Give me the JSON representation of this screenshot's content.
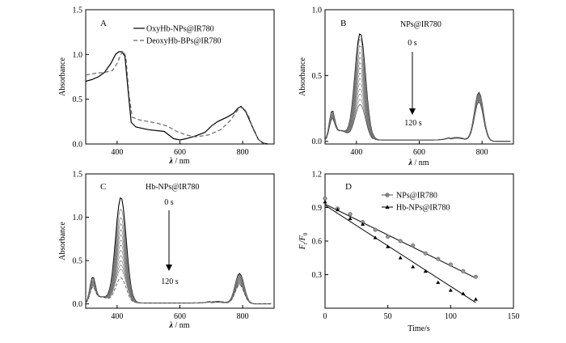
{
  "chart_data": [
    {
      "panel": "A",
      "type": "line",
      "xlabel_var": "λ",
      "xlabel_unit": " / nm",
      "ylabel": "Absorbance",
      "xlim": [
        300,
        900
      ],
      "ylim": [
        0,
        1.5
      ],
      "xticks": [
        400,
        600,
        800
      ],
      "yticks": [
        0.0,
        0.5,
        1.0,
        1.5
      ],
      "ytick_labels": [
        "0.0",
        "0.5",
        "1.0",
        "1.5"
      ],
      "legend_position": "top-right",
      "series": [
        {
          "name": "OxyHb-NPs@IR780",
          "style": "solid",
          "points": [
            [
              300,
              0.7
            ],
            [
              320,
              0.72
            ],
            [
              340,
              0.75
            ],
            [
              360,
              0.8
            ],
            [
              380,
              0.9
            ],
            [
              395,
              1.0
            ],
            [
              405,
              1.03
            ],
            [
              415,
              1.03
            ],
            [
              425,
              0.98
            ],
            [
              435,
              0.6
            ],
            [
              445,
              0.24
            ],
            [
              460,
              0.19
            ],
            [
              500,
              0.16
            ],
            [
              550,
              0.14
            ],
            [
              580,
              0.06
            ],
            [
              600,
              0.045
            ],
            [
              620,
              0.06
            ],
            [
              650,
              0.09
            ],
            [
              680,
              0.13
            ],
            [
              700,
              0.2
            ],
            [
              720,
              0.25
            ],
            [
              750,
              0.3
            ],
            [
              770,
              0.34
            ],
            [
              785,
              0.4
            ],
            [
              795,
              0.42
            ],
            [
              810,
              0.36
            ],
            [
              830,
              0.2
            ],
            [
              850,
              0.05
            ],
            [
              865,
              0.01
            ],
            [
              880,
              0.0
            ]
          ]
        },
        {
          "name": "DeoxyHb-BPs@IR780",
          "style": "dashed",
          "points": [
            [
              300,
              0.77
            ],
            [
              330,
              0.79
            ],
            [
              360,
              0.8
            ],
            [
              385,
              0.82
            ],
            [
              400,
              0.9
            ],
            [
              412,
              1.0
            ],
            [
              420,
              1.04
            ],
            [
              428,
              0.97
            ],
            [
              438,
              0.55
            ],
            [
              448,
              0.3
            ],
            [
              470,
              0.27
            ],
            [
              500,
              0.25
            ],
            [
              530,
              0.23
            ],
            [
              560,
              0.2
            ],
            [
              590,
              0.14
            ],
            [
              620,
              0.1
            ],
            [
              650,
              0.08
            ],
            [
              690,
              0.1
            ],
            [
              730,
              0.16
            ],
            [
              760,
              0.26
            ],
            [
              780,
              0.36
            ],
            [
              792,
              0.41
            ],
            [
              805,
              0.4
            ],
            [
              820,
              0.3
            ],
            [
              835,
              0.15
            ],
            [
              850,
              0.05
            ],
            [
              870,
              0.0
            ]
          ]
        }
      ]
    },
    {
      "panel": "B",
      "type": "line",
      "title": "NPs@IR780",
      "xlabel_var": "λ",
      "xlabel_unit": " / nm",
      "ylabel": "Absorbance",
      "xlim": [
        300,
        900
      ],
      "ylim": [
        -0.02,
        1.0
      ],
      "xticks": [
        400,
        600,
        800
      ],
      "yticks": [
        0.0,
        0.5,
        1.0
      ],
      "ytick_labels": [
        "0.0",
        "0.5",
        "1.0"
      ],
      "annotation_start": "0 s",
      "annotation_end": "120 s",
      "peak_soret": [
        0.82,
        0.78,
        0.73,
        0.68,
        0.64,
        0.6,
        0.56,
        0.52,
        0.48,
        0.44,
        0.4,
        0.36,
        0.32,
        0.28
      ],
      "peak_ir": [
        0.37,
        0.365,
        0.36,
        0.355,
        0.35,
        0.345,
        0.34,
        0.335,
        0.33,
        0.325,
        0.32,
        0.315,
        0.31,
        0.3
      ]
    },
    {
      "panel": "C",
      "type": "line",
      "title": "Hb-NPs@IR780",
      "xlabel_var": "λ",
      "xlabel_unit": " / nm",
      "ylabel": "Absorbance",
      "xlim": [
        300,
        900
      ],
      "ylim": [
        -0.05,
        1.5
      ],
      "xticks": [
        400,
        600,
        800
      ],
      "yticks": [
        0.0,
        0.5,
        1.0,
        1.5
      ],
      "ytick_labels": [
        "0.0",
        "0.5",
        "1.0",
        "1.5"
      ],
      "annotation_start": "0 s",
      "annotation_end": "120 s",
      "peak_soret": [
        1.23,
        1.1,
        1.0,
        0.93,
        0.86,
        0.8,
        0.74,
        0.68,
        0.62,
        0.56,
        0.5,
        0.45,
        0.4,
        0.3
      ],
      "peak_ir": [
        0.35,
        0.34,
        0.33,
        0.32,
        0.31,
        0.3,
        0.29,
        0.28,
        0.27,
        0.26,
        0.25,
        0.24,
        0.23,
        0.22
      ]
    },
    {
      "panel": "D",
      "type": "scatter",
      "xlabel": "Time/s",
      "ylabel_main": "F",
      "ylabel_sub1": "t",
      "ylabel_mid": "/F",
      "ylabel_sub2": "0",
      "xlim": [
        0,
        150
      ],
      "ylim": [
        0,
        1.2
      ],
      "xticks": [
        0,
        50,
        100,
        150
      ],
      "yticks": [
        0.3,
        0.6,
        0.9,
        1.2
      ],
      "ytick_labels": [
        "0.3",
        "0.6",
        "0.9",
        "1.2"
      ],
      "legend_position": "top-right",
      "series": [
        {
          "name": "NPs@IR780",
          "marker": "circle",
          "x": [
            0,
            10,
            20,
            30,
            40,
            50,
            60,
            70,
            80,
            90,
            100,
            110,
            120
          ],
          "y": [
            0.98,
            0.89,
            0.84,
            0.77,
            0.7,
            0.64,
            0.6,
            0.56,
            0.49,
            0.44,
            0.39,
            0.33,
            0.28
          ],
          "fit": [
            [
              0,
              0.93
            ],
            [
              120,
              0.27
            ]
          ]
        },
        {
          "name": "Hb-NPs@IR780",
          "marker": "triangle",
          "x": [
            0,
            10,
            20,
            30,
            40,
            50,
            60,
            70,
            80,
            90,
            100,
            110,
            120
          ],
          "y": [
            0.95,
            0.88,
            0.8,
            0.75,
            0.63,
            0.55,
            0.45,
            0.37,
            0.33,
            0.23,
            0.16,
            0.13,
            0.08
          ],
          "fit": [
            [
              0,
              0.92
            ],
            [
              120,
              0.05
            ]
          ]
        }
      ]
    }
  ]
}
